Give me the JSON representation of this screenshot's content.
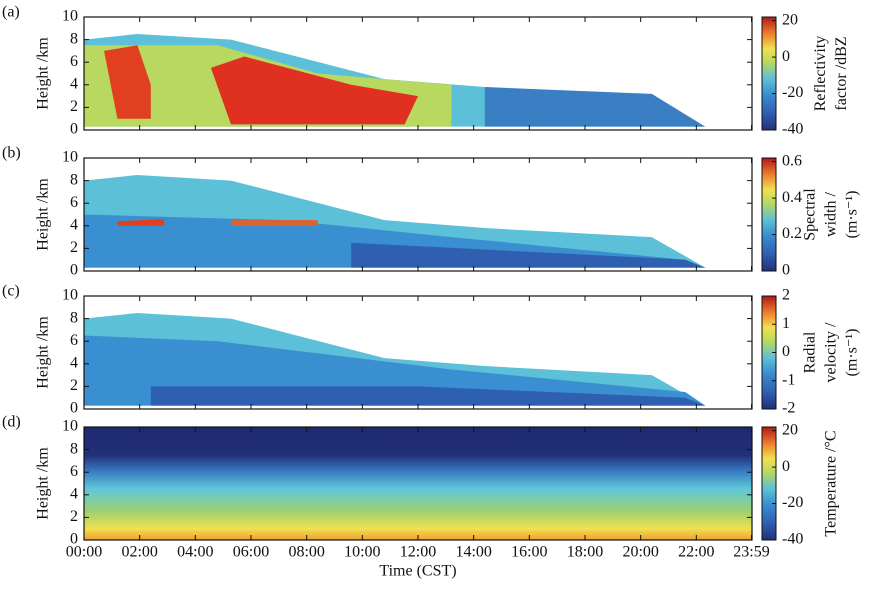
{
  "chart_data": [
    {
      "type": "heatmap",
      "panel_label": "(a)",
      "ylabel": "Height /km",
      "ylim": [
        0,
        10
      ],
      "yticks": [
        0,
        2,
        4,
        6,
        8,
        10
      ],
      "colorbar_label": [
        "Reflectivity",
        "factor /dBZ"
      ],
      "clim": [
        -40,
        22
      ],
      "cticks": [
        -40,
        -20,
        0,
        20
      ]
    },
    {
      "type": "heatmap",
      "panel_label": "(b)",
      "ylabel": "Height /km",
      "ylim": [
        0,
        10
      ],
      "yticks": [
        0,
        2,
        4,
        6,
        8,
        10
      ],
      "colorbar_label": [
        "Spectral",
        "width /",
        "(m·s⁻¹)"
      ],
      "clim": [
        0,
        0.62
      ],
      "cticks": [
        0,
        0.2,
        0.4,
        0.6
      ]
    },
    {
      "type": "heatmap",
      "panel_label": "(c)",
      "ylabel": "Height /km",
      "ylim": [
        0,
        10
      ],
      "yticks": [
        0,
        2,
        4,
        6,
        8,
        10
      ],
      "colorbar_label": [
        "Radial",
        "velocity /",
        "(m·s⁻¹)"
      ],
      "clim": [
        -2,
        2
      ],
      "cticks": [
        -2,
        -1,
        0,
        1,
        2
      ]
    },
    {
      "type": "heatmap",
      "panel_label": "(d)",
      "ylabel": "Height /km",
      "ylim": [
        0,
        10
      ],
      "yticks": [
        0,
        2,
        4,
        6,
        8,
        10
      ],
      "colorbar_label": [
        "Temperature /°C"
      ],
      "clim": [
        -40,
        22
      ],
      "cticks": [
        -40,
        -20,
        0,
        20
      ],
      "xlabel": "Time (CST)",
      "xlim": [
        0,
        24
      ],
      "xticks": [
        {
          "value": 0,
          "label": "00:00"
        },
        {
          "value": 2,
          "label": "02:00"
        },
        {
          "value": 4,
          "label": "04:00"
        },
        {
          "value": 6,
          "label": "06:00"
        },
        {
          "value": 8,
          "label": "08:00"
        },
        {
          "value": 10,
          "label": "10:00"
        },
        {
          "value": 12,
          "label": "12:00"
        },
        {
          "value": 14,
          "label": "14:00"
        },
        {
          "value": 16,
          "label": "16:00"
        },
        {
          "value": 18,
          "label": "18:00"
        },
        {
          "value": 20,
          "label": "20:00"
        },
        {
          "value": 22,
          "label": "22:00"
        },
        {
          "value": 23.983,
          "label": "23:59"
        }
      ]
    }
  ]
}
